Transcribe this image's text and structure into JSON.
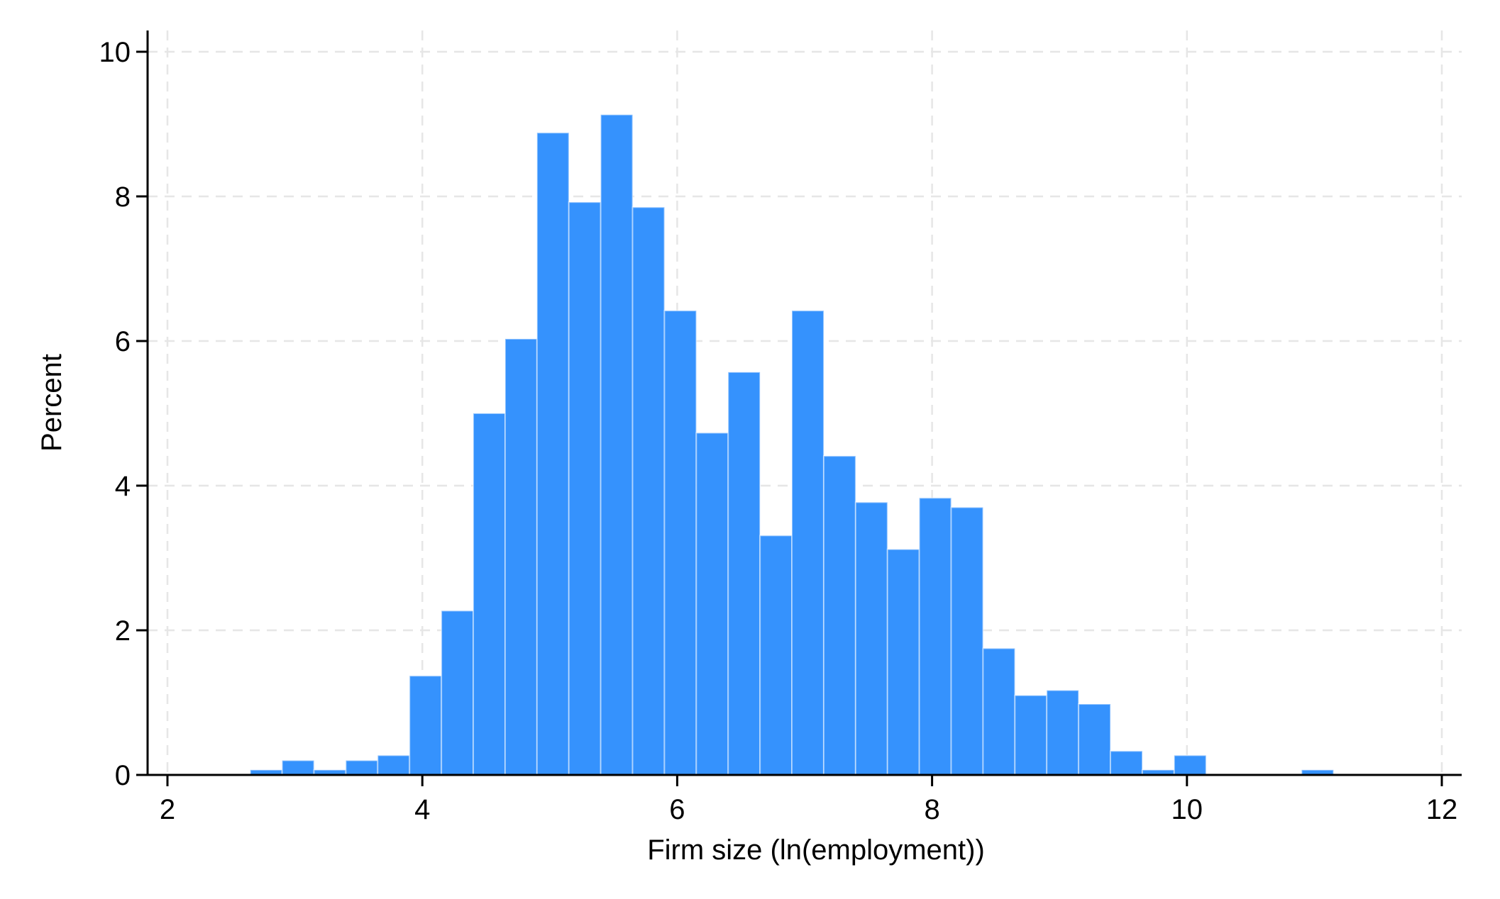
{
  "chart_data": {
    "type": "bar",
    "subtype": "histogram",
    "title": "",
    "xlabel": "Firm size (ln(employment))",
    "ylabel": "Percent",
    "xlim": [
      2,
      12
    ],
    "ylim": [
      0,
      10
    ],
    "xticks": [
      "2",
      "4",
      "6",
      "8",
      "10",
      "12"
    ],
    "yticks": [
      "0",
      "2",
      "4",
      "6",
      "8",
      "10"
    ],
    "grid": true,
    "bar_color": "#3592fd",
    "bins": [
      {
        "x0": 2.65,
        "x1": 2.9,
        "value": 0.07
      },
      {
        "x0": 2.9,
        "x1": 3.15,
        "value": 0.2
      },
      {
        "x0": 3.15,
        "x1": 3.4,
        "value": 0.07
      },
      {
        "x0": 3.4,
        "x1": 3.65,
        "value": 0.2
      },
      {
        "x0": 3.65,
        "x1": 3.9,
        "value": 0.27
      },
      {
        "x0": 3.9,
        "x1": 4.15,
        "value": 1.37
      },
      {
        "x0": 4.15,
        "x1": 4.4,
        "value": 2.27
      },
      {
        "x0": 4.4,
        "x1": 4.65,
        "value": 5.0
      },
      {
        "x0": 4.65,
        "x1": 4.9,
        "value": 6.03
      },
      {
        "x0": 4.9,
        "x1": 5.15,
        "value": 8.88
      },
      {
        "x0": 5.15,
        "x1": 5.4,
        "value": 7.92
      },
      {
        "x0": 5.4,
        "x1": 5.65,
        "value": 9.13
      },
      {
        "x0": 5.65,
        "x1": 5.9,
        "value": 7.85
      },
      {
        "x0": 5.9,
        "x1": 6.15,
        "value": 6.42
      },
      {
        "x0": 6.15,
        "x1": 6.4,
        "value": 4.73
      },
      {
        "x0": 6.4,
        "x1": 6.65,
        "value": 5.57
      },
      {
        "x0": 6.65,
        "x1": 6.9,
        "value": 3.31
      },
      {
        "x0": 6.9,
        "x1": 7.15,
        "value": 6.42
      },
      {
        "x0": 7.15,
        "x1": 7.4,
        "value": 4.41
      },
      {
        "x0": 7.4,
        "x1": 7.65,
        "value": 3.77
      },
      {
        "x0": 7.65,
        "x1": 7.9,
        "value": 3.12
      },
      {
        "x0": 7.9,
        "x1": 8.15,
        "value": 3.83
      },
      {
        "x0": 8.15,
        "x1": 8.4,
        "value": 3.7
      },
      {
        "x0": 8.4,
        "x1": 8.65,
        "value": 1.75
      },
      {
        "x0": 8.65,
        "x1": 8.9,
        "value": 1.1
      },
      {
        "x0": 8.9,
        "x1": 9.15,
        "value": 1.17
      },
      {
        "x0": 9.15,
        "x1": 9.4,
        "value": 0.98
      },
      {
        "x0": 9.4,
        "x1": 9.65,
        "value": 0.33
      },
      {
        "x0": 9.65,
        "x1": 9.9,
        "value": 0.07
      },
      {
        "x0": 9.9,
        "x1": 10.15,
        "value": 0.27
      },
      {
        "x0": 10.9,
        "x1": 11.15,
        "value": 0.07
      }
    ]
  }
}
